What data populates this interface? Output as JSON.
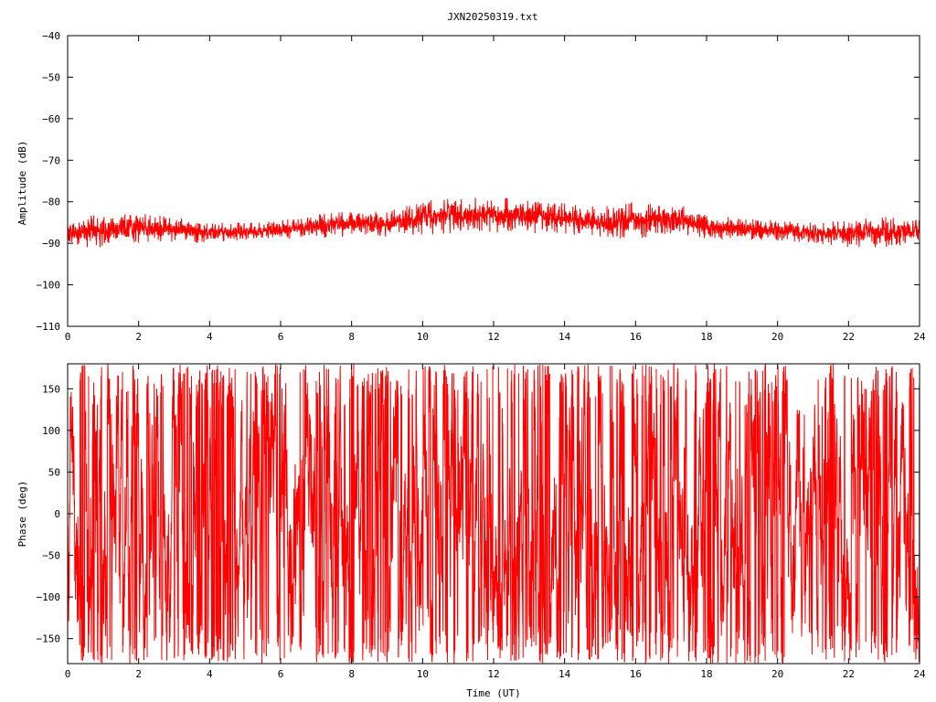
{
  "title": "JXN20250319.txt",
  "series_color": "#ff0000",
  "chart_data": [
    {
      "type": "line",
      "ylabel": "Amplitude (dB)",
      "xlabel": "",
      "xlim": [
        0,
        24
      ],
      "ylim": [
        -110,
        -40
      ],
      "xticks": [
        "0",
        "2",
        "4",
        "6",
        "8",
        "10",
        "12",
        "14",
        "16",
        "18",
        "20",
        "22",
        "24"
      ],
      "yticks": [
        "−40",
        "−50",
        "−60",
        "−70",
        "−80",
        "−90",
        "−100",
        "−110"
      ],
      "envelope": {
        "x": [
          0,
          1,
          2,
          3,
          4,
          5,
          6,
          7,
          8,
          9,
          10,
          11,
          12,
          13,
          14,
          15,
          16,
          17,
          18,
          19,
          20,
          21,
          22,
          23,
          24
        ],
        "low": [
          -91,
          -91,
          -90,
          -90,
          -90,
          -89.5,
          -89,
          -89,
          -88.5,
          -88.5,
          -88,
          -87.5,
          -87.5,
          -87.5,
          -88,
          -89,
          -89,
          -88.5,
          -89,
          -89.5,
          -89.5,
          -90,
          -91,
          -91,
          -90.5
        ],
        "high": [
          -84,
          -83,
          -82.5,
          -83.5,
          -85,
          -85,
          -84.5,
          -83,
          -82,
          -82.5,
          -79,
          -79,
          -79,
          -79,
          -80,
          -81,
          -80,
          -80,
          -83,
          -84,
          -84.5,
          -85,
          -84.5,
          -83.5,
          -84
        ]
      }
    },
    {
      "type": "line",
      "ylabel": "Phase (deg)",
      "xlabel": "Time (UT)",
      "xlim": [
        0,
        24
      ],
      "ylim": [
        -180,
        180
      ],
      "xticks": [
        "0",
        "2",
        "4",
        "6",
        "8",
        "10",
        "12",
        "14",
        "16",
        "18",
        "20",
        "22",
        "24"
      ],
      "yticks": [
        "150",
        "100",
        "50",
        "0",
        "−50",
        "−100",
        "−150"
      ],
      "wrap_range": [
        -180,
        180
      ]
    }
  ]
}
